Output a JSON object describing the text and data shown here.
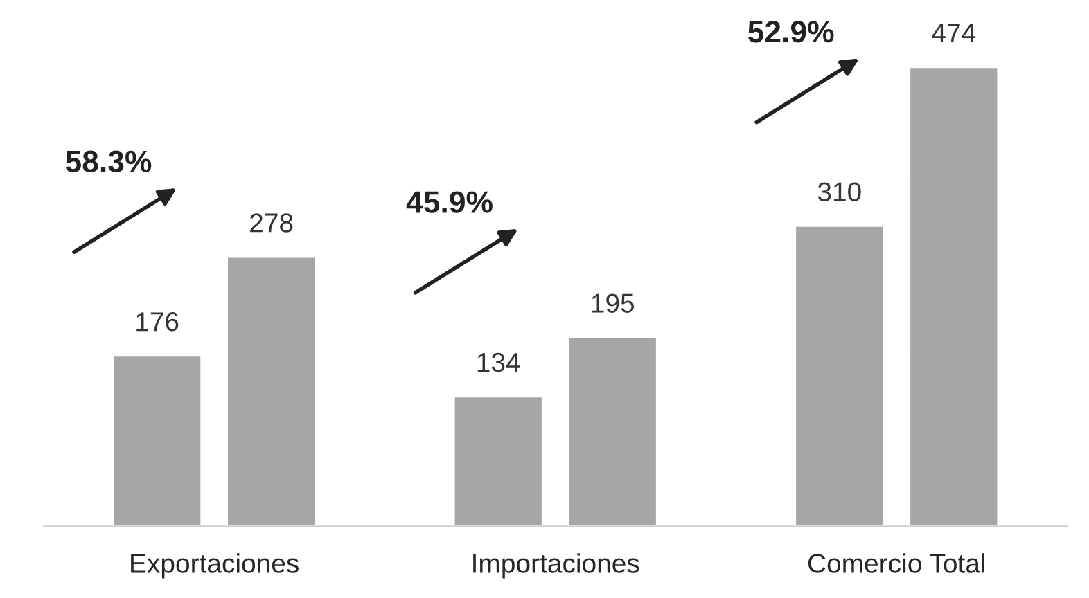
{
  "chart_data": {
    "type": "bar",
    "categories": [
      "Exportaciones",
      "Importaciones",
      "Comercio Total"
    ],
    "series": [
      {
        "color": "#a6a6a6",
        "values": [
          176,
          134,
          310
        ]
      },
      {
        "color": "#a6a6a6",
        "values": [
          278,
          195,
          474
        ]
      }
    ],
    "data_labels": true,
    "grid": false,
    "annotations": [
      "58.3%",
      "45.9%",
      "52.9%"
    ]
  }
}
